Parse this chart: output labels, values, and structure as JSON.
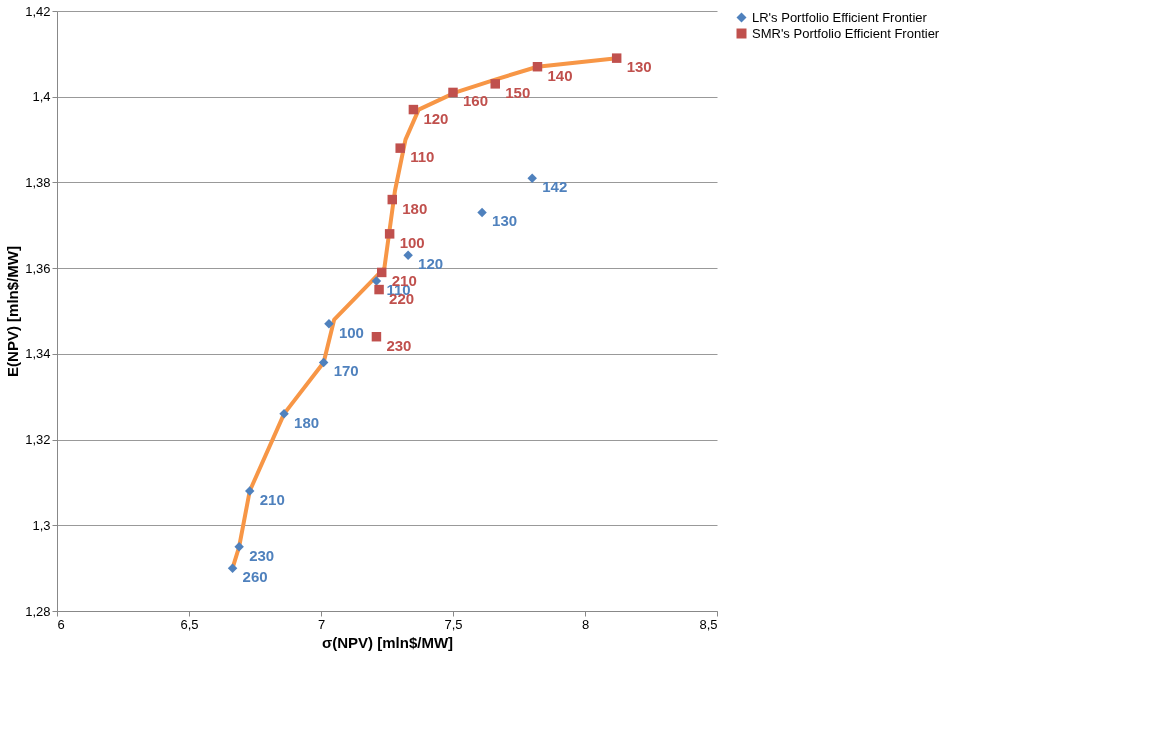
{
  "chart_data": {
    "type": "scatter",
    "xlabel": "σ(NPV) [mln$/MW]",
    "ylabel": "E(NPV) [mln$/MW]",
    "series": [
      {
        "name": "LR's Portfolio Efficient Frontier",
        "color": "#4f81bd",
        "marker": "diamond",
        "x": [
          6.665,
          6.69,
          6.73,
          6.86,
          7.01,
          7.03,
          7.21,
          7.33,
          7.61,
          7.8
        ],
        "values": [
          1.29,
          1.295,
          1.308,
          1.326,
          1.338,
          1.347,
          1.357,
          1.363,
          1.373,
          1.381
        ]
      },
      {
        "name": "SMR's Portfolio Efficient Frontier",
        "color": "#c0504d",
        "marker": "square",
        "x": [
          8.12,
          7.82,
          7.66,
          7.5,
          7.35,
          7.3,
          7.27,
          7.26,
          7.23,
          7.22,
          7.21
        ],
        "values": [
          1.409,
          1.407,
          1.403,
          1.401,
          1.397,
          1.388,
          1.376,
          1.368,
          1.359,
          1.355,
          1.344
        ]
      },
      {
        "type": "line",
        "color": "#f79646",
        "marker": "none",
        "x": [
          6.665,
          6.69,
          6.73,
          6.86,
          7.01,
          7.05,
          7.24,
          7.28,
          7.32,
          7.37,
          7.51,
          7.66,
          7.82,
          8.12
        ],
        "values": [
          1.29,
          1.295,
          1.308,
          1.326,
          1.338,
          1.348,
          1.36,
          1.378,
          1.39,
          1.397,
          1.401,
          1.404,
          1.407,
          1.409
        ]
      }
    ],
    "annotations": [
      {
        "text": "260",
        "x": 6.665,
        "y": 1.29
      },
      {
        "text": "230",
        "x": 6.69,
        "y": 1.295
      },
      {
        "text": "210",
        "x": 6.73,
        "y": 1.308
      },
      {
        "text": "180",
        "x": 6.86,
        "y": 1.326
      },
      {
        "text": "170",
        "x": 7.01,
        "y": 1.338
      },
      {
        "text": "100",
        "x": 7.03,
        "y": 1.347
      },
      {
        "text": "110",
        "x": 7.21,
        "y": 1.357
      },
      {
        "text": "120",
        "x": 7.33,
        "y": 1.363
      },
      {
        "text": "130",
        "x": 7.61,
        "y": 1.373
      },
      {
        "text": "142",
        "x": 7.8,
        "y": 1.381
      },
      {
        "text": "130",
        "x": 8.12,
        "y": 1.409
      },
      {
        "text": "140",
        "x": 7.82,
        "y": 1.407
      },
      {
        "text": "150",
        "x": 7.66,
        "y": 1.403
      },
      {
        "text": "160",
        "x": 7.5,
        "y": 1.401
      },
      {
        "text": "120",
        "x": 7.35,
        "y": 1.397
      },
      {
        "text": "110",
        "x": 7.3,
        "y": 1.388
      },
      {
        "text": "180",
        "x": 7.27,
        "y": 1.376
      },
      {
        "text": "100",
        "x": 7.26,
        "y": 1.368
      },
      {
        "text": "210",
        "x": 7.23,
        "y": 1.359
      },
      {
        "text": "220",
        "x": 7.22,
        "y": 1.355
      },
      {
        "text": "230",
        "x": 7.21,
        "y": 1.344
      }
    ],
    "xlim": [
      6,
      8.5
    ],
    "xticks": [
      6,
      {
        "value": 6.5,
        "label": "6,5"
      },
      7,
      {
        "value": 7.5,
        "label": "7,5"
      },
      8,
      {
        "value": 8.5,
        "label": "8,5"
      }
    ],
    "ylim": [
      1.28,
      1.42
    ],
    "yticks": [
      {
        "value": 1.28,
        "label": "1,28"
      },
      {
        "value": 1.3,
        "label": "1,3"
      },
      {
        "value": 1.32,
        "label": "1,32"
      },
      {
        "value": 1.34,
        "label": "1,34"
      },
      {
        "value": 1.36,
        "label": "1,36"
      },
      {
        "value": 1.38,
        "label": "1,38"
      },
      {
        "value": 1.4,
        "label": "1,4"
      },
      {
        "value": 1.42,
        "label": "1,42"
      }
    ],
    "grid": "y",
    "legend": "right"
  }
}
